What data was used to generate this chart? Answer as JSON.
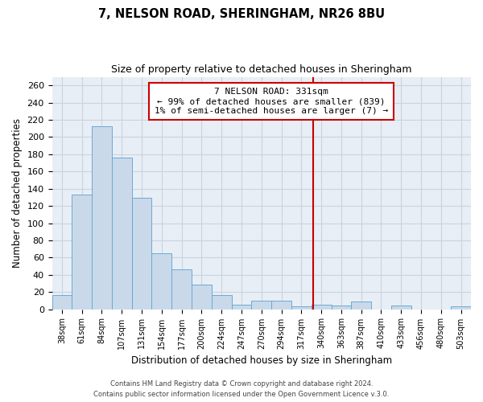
{
  "title": "7, NELSON ROAD, SHERINGHAM, NR26 8BU",
  "subtitle": "Size of property relative to detached houses in Sheringham",
  "xlabel": "Distribution of detached houses by size in Sheringham",
  "ylabel": "Number of detached properties",
  "bin_labels": [
    "38sqm",
    "61sqm",
    "84sqm",
    "107sqm",
    "131sqm",
    "154sqm",
    "177sqm",
    "200sqm",
    "224sqm",
    "247sqm",
    "270sqm",
    "294sqm",
    "317sqm",
    "340sqm",
    "363sqm",
    "387sqm",
    "410sqm",
    "433sqm",
    "456sqm",
    "480sqm",
    "503sqm"
  ],
  "bar_heights": [
    16,
    133,
    213,
    176,
    129,
    65,
    46,
    29,
    16,
    5,
    10,
    10,
    3,
    5,
    4,
    9,
    0,
    4,
    0,
    0,
    3
  ],
  "bar_color": "#c9d9ea",
  "bar_edge_color": "#6aaad4",
  "grid_color": "#c8d4e0",
  "bg_color": "#e8eef5",
  "vline_color": "#cc0000",
  "annotation_title": "7 NELSON ROAD: 331sqm",
  "annotation_line1": "← 99% of detached houses are smaller (839)",
  "annotation_line2": "1% of semi-detached houses are larger (7) →",
  "annotation_box_color": "#ffffff",
  "annotation_border_color": "#cc0000",
  "footer_line1": "Contains HM Land Registry data © Crown copyright and database right 2024.",
  "footer_line2": "Contains public sector information licensed under the Open Government Licence v.3.0.",
  "ylim": [
    0,
    270
  ],
  "yticks": [
    0,
    20,
    40,
    60,
    80,
    100,
    120,
    140,
    160,
    180,
    200,
    220,
    240,
    260
  ]
}
